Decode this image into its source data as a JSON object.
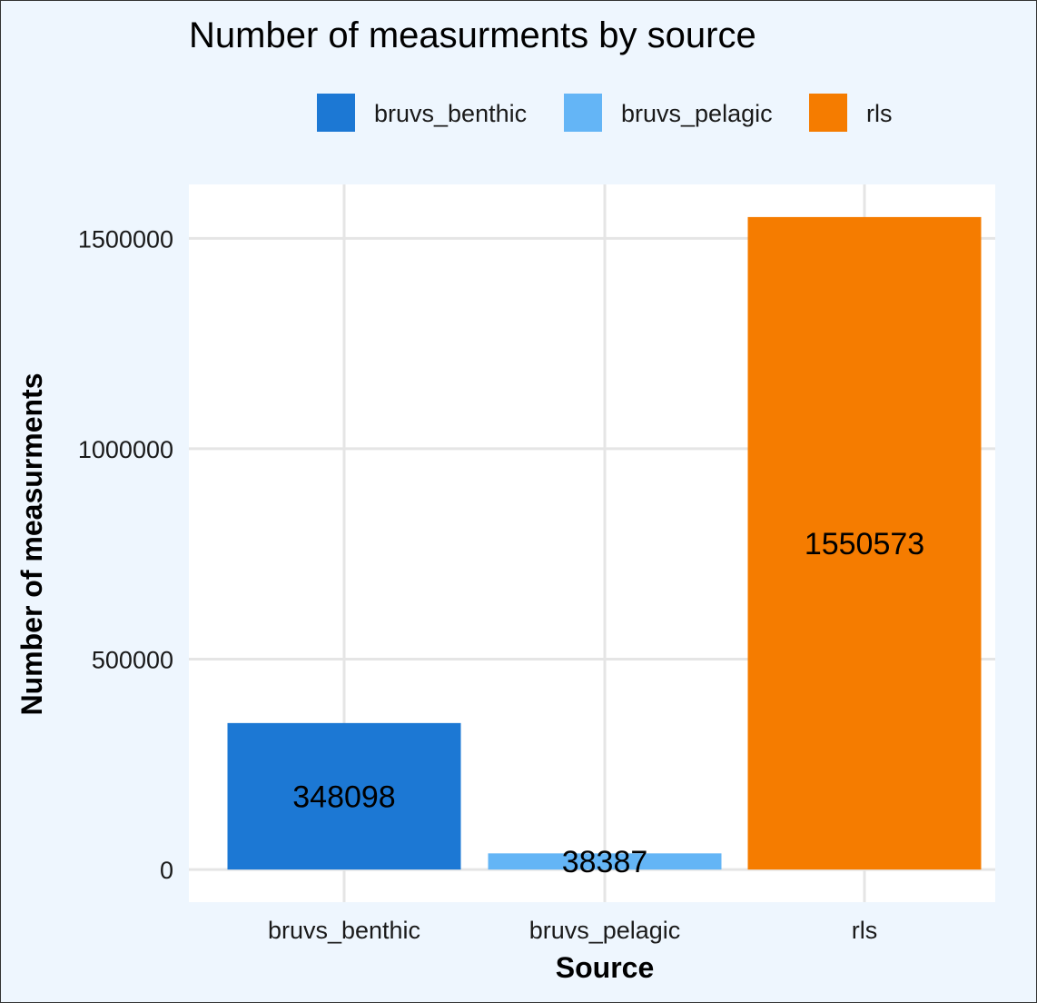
{
  "colors": {
    "background": "#EEF6FE",
    "panel": "#FFFFFF",
    "grid": "#E5E5E5"
  },
  "chart_data": {
    "type": "bar",
    "title": "Number of measurments by source",
    "xlabel": "Source",
    "ylabel": "Number of measurments",
    "categories": [
      "bruvs_benthic",
      "bruvs_pelagic",
      "rls"
    ],
    "values": [
      348098,
      38387,
      1550573
    ],
    "bar_colors": [
      "#1C78D4",
      "#64B5F6",
      "#F57C00"
    ],
    "data_labels": [
      "348098",
      "38387",
      "1550573"
    ],
    "y_ticks": [
      0,
      500000,
      1000000,
      1500000
    ],
    "y_tick_labels": [
      "0",
      "500000",
      "1000000",
      "1500000"
    ],
    "ylim": [
      -77529,
      1628102
    ],
    "legend": {
      "position": "top",
      "items": [
        {
          "label": "bruvs_benthic",
          "color": "#1C78D4"
        },
        {
          "label": "bruvs_pelagic",
          "color": "#64B5F6"
        },
        {
          "label": "rls",
          "color": "#F57C00"
        }
      ]
    },
    "grid": true
  }
}
